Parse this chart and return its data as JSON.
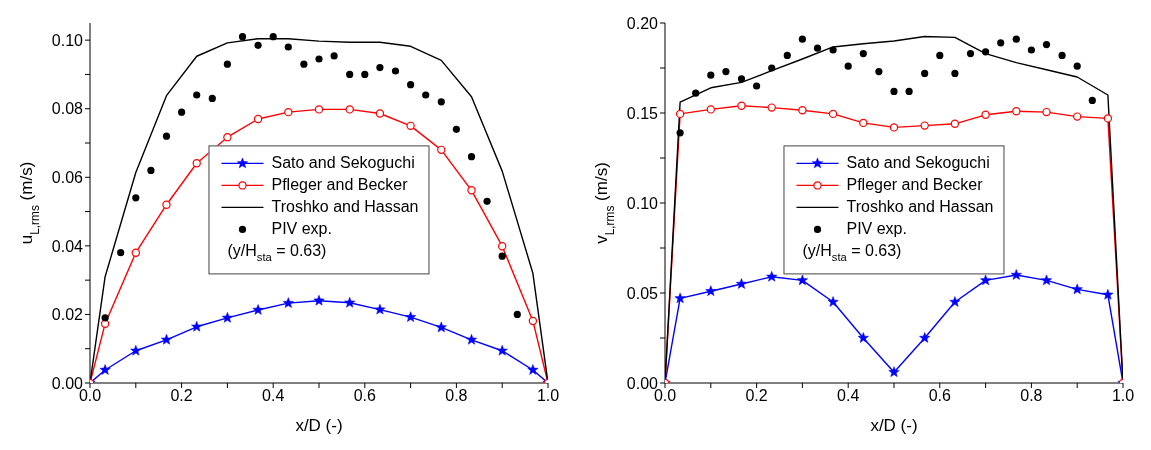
{
  "chart_data": [
    {
      "type": "line",
      "xlabel": "x/D (-)",
      "ylabel": "u$_{L,rms}$ (m/s)",
      "xlim": [
        0,
        1
      ],
      "xticks": [
        {
          "value": 0,
          "label": "0.0"
        },
        {
          "value": 0.1,
          "label": null
        },
        {
          "value": 0.2,
          "label": "0.2"
        },
        {
          "value": 0.3,
          "label": null
        },
        {
          "value": 0.4,
          "label": "0.4"
        },
        {
          "value": 0.5,
          "label": null
        },
        {
          "value": 0.6,
          "label": "0.6"
        },
        {
          "value": 0.7,
          "label": null
        },
        {
          "value": 0.8,
          "label": "0.8"
        },
        {
          "value": 0.9,
          "label": null
        },
        {
          "value": 1,
          "label": "1.0"
        }
      ],
      "ylim": [
        0,
        0.105
      ],
      "yticks": [
        {
          "value": 0,
          "label": "0.00"
        },
        {
          "value": 0.01,
          "label": null
        },
        {
          "value": 0.02,
          "label": "0.02"
        },
        {
          "value": 0.03,
          "label": null
        },
        {
          "value": 0.04,
          "label": "0.04"
        },
        {
          "value": 0.05,
          "label": null
        },
        {
          "value": 0.06,
          "label": "0.06"
        },
        {
          "value": 0.07,
          "label": null
        },
        {
          "value": 0.08,
          "label": "0.08"
        },
        {
          "value": 0.09,
          "label": null
        },
        {
          "value": 0.1,
          "label": "0.10"
        }
      ],
      "legend": "center",
      "annotations": [
        "(y/H$_{sta}$ = 0.63)"
      ],
      "x": [
        0,
        0.033,
        0.1,
        0.167,
        0.233,
        0.3,
        0.367,
        0.433,
        0.5,
        0.567,
        0.633,
        0.7,
        0.767,
        0.833,
        0.9,
        0.967,
        1
      ],
      "series": [
        {
          "name": "Sato and Sekoguchi",
          "marker": "star",
          "color": "#0000ff",
          "values": [
            0,
            0.0038,
            0.0094,
            0.0126,
            0.0164,
            0.019,
            0.0213,
            0.0233,
            0.024,
            0.0234,
            0.0214,
            0.0192,
            0.0162,
            0.0126,
            0.0094,
            0.0038,
            0
          ]
        },
        {
          "name": "Pfleger and Becker",
          "marker": "circle",
          "color": "#ff0000",
          "values": [
            0,
            0.0173,
            0.038,
            0.052,
            0.0641,
            0.0717,
            0.077,
            0.079,
            0.0798,
            0.0798,
            0.0786,
            0.075,
            0.068,
            0.0562,
            0.0399,
            0.0181,
            0
          ]
        },
        {
          "name": "Troshko and Hassan",
          "marker": "none",
          "color": "#000000",
          "values": [
            0,
            0.031,
            0.0614,
            0.0838,
            0.0953,
            0.0992,
            0.1004,
            0.1004,
            0.0997,
            0.0994,
            0.0994,
            0.0982,
            0.0941,
            0.0835,
            0.0618,
            0.032,
            0
          ]
        },
        {
          "name": "PIV exp.",
          "type": "scatter",
          "marker": "circle",
          "color": "#000000",
          "x": [
            0.033,
            0.067,
            0.1,
            0.133,
            0.167,
            0.2,
            0.233,
            0.267,
            0.3,
            0.333,
            0.367,
            0.4,
            0.433,
            0.467,
            0.5,
            0.533,
            0.567,
            0.6,
            0.633,
            0.667,
            0.7,
            0.733,
            0.767,
            0.8,
            0.833,
            0.867,
            0.9,
            0.933
          ],
          "values": [
            0.019,
            0.038,
            0.054,
            0.062,
            0.072,
            0.079,
            0.084,
            0.083,
            0.093,
            0.101,
            0.0985,
            0.101,
            0.098,
            0.093,
            0.0945,
            0.0954,
            0.09,
            0.09,
            0.092,
            0.091,
            0.087,
            0.084,
            0.082,
            0.074,
            0.066,
            0.053,
            0.037,
            0.02
          ]
        }
      ]
    },
    {
      "type": "line",
      "xlabel": "x/D (-)",
      "ylabel": "v$_{L,rms}$ (m/s)",
      "xlim": [
        0,
        1
      ],
      "xticks": [
        {
          "value": 0,
          "label": "0.0"
        },
        {
          "value": 0.1,
          "label": null
        },
        {
          "value": 0.2,
          "label": "0.2"
        },
        {
          "value": 0.3,
          "label": null
        },
        {
          "value": 0.4,
          "label": "0.4"
        },
        {
          "value": 0.5,
          "label": null
        },
        {
          "value": 0.6,
          "label": "0.6"
        },
        {
          "value": 0.7,
          "label": null
        },
        {
          "value": 0.8,
          "label": "0.8"
        },
        {
          "value": 0.9,
          "label": null
        },
        {
          "value": 1,
          "label": "1.0"
        }
      ],
      "ylim": [
        0,
        0.2
      ],
      "yticks": [
        {
          "value": 0,
          "label": "0.00"
        },
        {
          "value": 0.025,
          "label": null
        },
        {
          "value": 0.05,
          "label": "0.05"
        },
        {
          "value": 0.075,
          "label": null
        },
        {
          "value": 0.1,
          "label": "0.10"
        },
        {
          "value": 0.125,
          "label": null
        },
        {
          "value": 0.15,
          "label": "0.15"
        },
        {
          "value": 0.175,
          "label": null
        },
        {
          "value": 0.2,
          "label": "0.20"
        }
      ],
      "legend": "center",
      "annotations": [
        "(y/H$_{sta}$ = 0.63)"
      ],
      "x": [
        0,
        0.033,
        0.1,
        0.167,
        0.233,
        0.3,
        0.367,
        0.433,
        0.5,
        0.567,
        0.633,
        0.7,
        0.767,
        0.833,
        0.9,
        0.967,
        1
      ],
      "series": [
        {
          "name": "Sato and Sekoguchi",
          "marker": "star",
          "color": "#0000ff",
          "values": [
            0,
            0.047,
            0.051,
            0.055,
            0.059,
            0.057,
            0.045,
            0.025,
            0.006,
            0.025,
            0.045,
            0.057,
            0.06,
            0.057,
            0.052,
            0.049,
            0
          ]
        },
        {
          "name": "Pfleger and Becker",
          "marker": "circle",
          "color": "#ff0000",
          "values": [
            0,
            0.1495,
            0.152,
            0.154,
            0.153,
            0.1515,
            0.1495,
            0.1445,
            0.142,
            0.143,
            0.144,
            0.149,
            0.151,
            0.1505,
            0.148,
            0.147,
            0
          ]
        },
        {
          "name": "Troshko and Hassan",
          "marker": "none",
          "color": "#000000",
          "values": [
            0,
            0.156,
            0.164,
            0.167,
            0.1735,
            0.18,
            0.1867,
            0.1885,
            0.19,
            0.1925,
            0.192,
            0.183,
            0.178,
            0.174,
            0.17,
            0.16,
            0
          ]
        },
        {
          "name": "PIV exp.",
          "type": "scatter",
          "marker": "circle",
          "color": "#000000",
          "x": [
            0.033,
            0.067,
            0.1,
            0.133,
            0.167,
            0.2,
            0.233,
            0.267,
            0.3,
            0.333,
            0.367,
            0.4,
            0.433,
            0.467,
            0.5,
            0.533,
            0.567,
            0.6,
            0.633,
            0.667,
            0.7,
            0.733,
            0.767,
            0.8,
            0.833,
            0.867,
            0.9,
            0.933
          ],
          "values": [
            0.139,
            0.161,
            0.171,
            0.173,
            0.169,
            0.165,
            0.175,
            0.182,
            0.191,
            0.186,
            0.185,
            0.176,
            0.183,
            0.173,
            0.162,
            0.162,
            0.172,
            0.182,
            0.172,
            0.183,
            0.184,
            0.189,
            0.191,
            0.185,
            0.188,
            0.182,
            0.176,
            0.157
          ]
        }
      ]
    }
  ]
}
